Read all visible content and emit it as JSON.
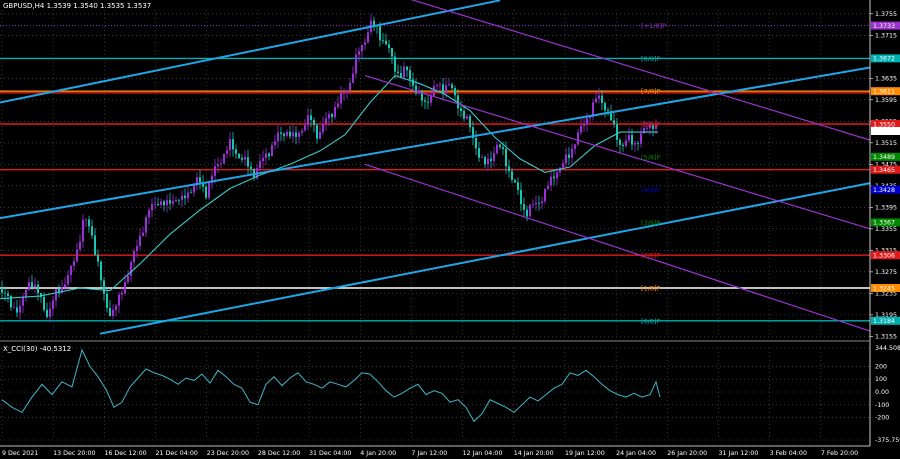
{
  "header": {
    "symbol_title": "GBPUSD,H4  1.3539 1.3540 1.3535 1.3537",
    "indicator_title": "X_CCI(30) -40.5312"
  },
  "colors": {
    "background": "#000000",
    "bull_candle": "#9b30d9",
    "bear_candle": "#19c8b4",
    "moving_average": "#3cc8c8",
    "channel_blue": "#1fa6e8",
    "channel_purple": "#9933cc",
    "support_red": "#e01a1a",
    "level_cyan": "#00b0b0",
    "level_gold": "#ff8c00",
    "grid": "#ffffff",
    "cci_line": "#3fb7c8"
  },
  "price_axis": {
    "ticks": [
      "1.3755",
      "1.3715",
      "1.3635",
      "1.3595",
      "1.3555",
      "1.3515",
      "1.3475",
      "1.3435",
      "1.3395",
      "1.3355",
      "1.3315",
      "1.3275",
      "1.3235",
      "1.3195",
      "1.3155"
    ]
  },
  "price_badges": [
    {
      "value": "1.3733",
      "price": 1.3733,
      "color": "#9933cc"
    },
    {
      "value": "1.3672",
      "price": 1.3672,
      "color": "#00b0b0"
    },
    {
      "value": "1.3611",
      "price": 1.3611,
      "color": "#ff8c00"
    },
    {
      "value": "1.3550",
      "price": 1.355,
      "color": "#e01a1a"
    },
    {
      "value": "1.3537",
      "price": 1.3537,
      "color": "#ffffff"
    },
    {
      "value": "1.3489",
      "price": 1.3489,
      "color": "#008800"
    },
    {
      "value": "1.3465",
      "price": 1.3465,
      "color": "#e01a1a"
    },
    {
      "value": "1.3428",
      "price": 1.3428,
      "color": "#0000cc"
    },
    {
      "value": "1.3367",
      "price": 1.3367,
      "color": "#008800"
    },
    {
      "value": "1.3306",
      "price": 1.3306,
      "color": "#e01a1a"
    },
    {
      "value": "1.3245",
      "price": 1.3245,
      "color": "#ff8c00"
    },
    {
      "value": "1.3184",
      "price": 1.3184,
      "color": "#00b0b0"
    }
  ],
  "murray_labels": [
    {
      "text": "[+1/8]P",
      "price": 1.3733,
      "color": "#9933cc"
    },
    {
      "text": "[8/8]P",
      "price": 1.3672,
      "color": "#00b0b0"
    },
    {
      "text": "[7/8]P",
      "price": 1.3611,
      "color": "#ff8c00"
    },
    {
      "text": "[6/8]P",
      "price": 1.355,
      "color": "#e01a1a"
    },
    {
      "text": "[5/8]P",
      "price": 1.3489,
      "color": "#008800"
    },
    {
      "text": "[4/8]P",
      "price": 1.3428,
      "color": "#0000cc"
    },
    {
      "text": "[3/8]P",
      "price": 1.3367,
      "color": "#008800"
    },
    {
      "text": "[2/8]P",
      "price": 1.3306,
      "color": "#e01a1a"
    },
    {
      "text": "[1/8]P",
      "price": 1.3245,
      "color": "#ff8c00"
    },
    {
      "text": "[0/8]P",
      "price": 1.3184,
      "color": "#00b0b0"
    }
  ],
  "time_axis": [
    "9 Dec 2021",
    "13 Dec 20:00",
    "16 Dec 12:00",
    "21 Dec 04:00",
    "23 Dec 20:00",
    "28 Dec 12:00",
    "31 Dec 04:00",
    "4 Jan 20:00",
    "7 Jan 12:00",
    "12 Jan 04:00",
    "14 Jan 20:00",
    "19 Jan 12:00",
    "24 Jan 04:00",
    "26 Jan 20:00",
    "31 Jan 12:00",
    "3 Feb 04:00",
    "7 Feb 20:00"
  ],
  "cci_axis": {
    "ticks": [
      "344.508",
      "200",
      "100",
      "0.00",
      "-100",
      "-200",
      "-375.759"
    ]
  },
  "chart_data": {
    "type": "candlestick",
    "symbol": "GBPUSD",
    "timeframe": "H4",
    "ohlc_last": {
      "open": 1.3539,
      "high": 1.354,
      "low": 1.3535,
      "close": 1.3537
    },
    "ylim": [
      1.3152,
      1.3762
    ],
    "close_path": [
      [
        0,
        1.3245
      ],
      [
        10,
        1.3215
      ],
      [
        20,
        1.3205
      ],
      [
        30,
        1.3265
      ],
      [
        40,
        1.3225
      ],
      [
        48,
        1.3195
      ],
      [
        55,
        1.323
      ],
      [
        62,
        1.325
      ],
      [
        70,
        1.327
      ],
      [
        78,
        1.3325
      ],
      [
        84,
        1.3375
      ],
      [
        92,
        1.3345
      ],
      [
        98,
        1.329
      ],
      [
        104,
        1.3225
      ],
      [
        110,
        1.32
      ],
      [
        118,
        1.3215
      ],
      [
        126,
        1.3265
      ],
      [
        134,
        1.3305
      ],
      [
        142,
        1.3355
      ],
      [
        150,
        1.339
      ],
      [
        158,
        1.341
      ],
      [
        166,
        1.3395
      ],
      [
        174,
        1.3415
      ],
      [
        182,
        1.3405
      ],
      [
        190,
        1.343
      ],
      [
        198,
        1.3445
      ],
      [
        206,
        1.3425
      ],
      [
        214,
        1.346
      ],
      [
        222,
        1.349
      ],
      [
        230,
        1.351
      ],
      [
        238,
        1.3495
      ],
      [
        246,
        1.3475
      ],
      [
        254,
        1.346
      ],
      [
        262,
        1.348
      ],
      [
        270,
        1.3505
      ],
      [
        278,
        1.3525
      ],
      [
        286,
        1.354
      ],
      [
        294,
        1.352
      ],
      [
        302,
        1.3545
      ],
      [
        310,
        1.356
      ],
      [
        318,
        1.353
      ],
      [
        326,
        1.3555
      ],
      [
        334,
        1.358
      ],
      [
        342,
        1.36
      ],
      [
        350,
        1.363
      ],
      [
        358,
        1.368
      ],
      [
        364,
        1.3705
      ],
      [
        370,
        1.3735
      ],
      [
        376,
        1.373
      ],
      [
        382,
        1.371
      ],
      [
        388,
        1.369
      ],
      [
        394,
        1.366
      ],
      [
        400,
        1.364
      ],
      [
        406,
        1.365
      ],
      [
        412,
        1.363
      ],
      [
        418,
        1.3605
      ],
      [
        424,
        1.3585
      ],
      [
        430,
        1.3605
      ],
      [
        436,
        1.362
      ],
      [
        442,
        1.3615
      ],
      [
        448,
        1.363
      ],
      [
        454,
        1.36
      ],
      [
        460,
        1.358
      ],
      [
        466,
        1.356
      ],
      [
        472,
        1.353
      ],
      [
        478,
        1.35
      ],
      [
        484,
        1.347
      ],
      [
        490,
        1.3485
      ],
      [
        496,
        1.351
      ],
      [
        502,
        1.35
      ],
      [
        508,
        1.347
      ],
      [
        514,
        1.344
      ],
      [
        520,
        1.341
      ],
      [
        526,
        1.3385
      ],
      [
        532,
        1.3395
      ],
      [
        538,
        1.3405
      ],
      [
        544,
        1.342
      ],
      [
        550,
        1.344
      ],
      [
        556,
        1.3465
      ],
      [
        562,
        1.347
      ],
      [
        568,
        1.349
      ],
      [
        574,
        1.3515
      ],
      [
        580,
        1.3535
      ],
      [
        586,
        1.356
      ],
      [
        592,
        1.358
      ],
      [
        598,
        1.36
      ],
      [
        604,
        1.359
      ],
      [
        610,
        1.356
      ],
      [
        616,
        1.353
      ],
      [
        622,
        1.351
      ],
      [
        628,
        1.352
      ],
      [
        634,
        1.3515
      ],
      [
        640,
        1.3525
      ],
      [
        646,
        1.354
      ],
      [
        652,
        1.3555
      ],
      [
        658,
        1.3537
      ]
    ],
    "moving_average_path": [
      [
        0,
        1.3225
      ],
      [
        40,
        1.323
      ],
      [
        80,
        1.3245
      ],
      [
        110,
        1.324
      ],
      [
        140,
        1.329
      ],
      [
        170,
        1.3345
      ],
      [
        200,
        1.339
      ],
      [
        230,
        1.343
      ],
      [
        260,
        1.3455
      ],
      [
        290,
        1.3475
      ],
      [
        320,
        1.35
      ],
      [
        345,
        1.353
      ],
      [
        370,
        1.359
      ],
      [
        395,
        1.364
      ],
      [
        420,
        1.3625
      ],
      [
        445,
        1.3605
      ],
      [
        470,
        1.3575
      ],
      [
        495,
        1.3525
      ],
      [
        520,
        1.3485
      ],
      [
        545,
        1.346
      ],
      [
        570,
        1.347
      ],
      [
        595,
        1.351
      ],
      [
        620,
        1.3535
      ],
      [
        658,
        1.3535
      ]
    ],
    "trend_lines": [
      {
        "color": "#1fa6e8",
        "from": [
          0,
          1.359
        ],
        "to": [
          500,
          1.378
        ]
      },
      {
        "color": "#1fa6e8",
        "from": [
          0,
          1.3375
        ],
        "to": [
          870,
          1.3655
        ]
      },
      {
        "color": "#1fa6e8",
        "from": [
          100,
          1.316
        ],
        "to": [
          870,
          1.344
        ]
      },
      {
        "color": "#9933cc",
        "from": [
          405,
          1.3785
        ],
        "to": [
          870,
          1.352
        ]
      },
      {
        "color": "#9933cc",
        "from": [
          365,
          1.364
        ],
        "to": [
          870,
          1.3355
        ]
      },
      {
        "color": "#9933cc",
        "from": [
          365,
          1.3475
        ],
        "to": [
          870,
          1.3165
        ]
      }
    ],
    "horizontal_levels": [
      {
        "price": 1.3733,
        "color": "#9933cc",
        "style": "dotted"
      },
      {
        "price": 1.3672,
        "color": "#00b0b0",
        "style": "solid"
      },
      {
        "price": 1.3611,
        "color": "#ff8c00",
        "style": "solid"
      },
      {
        "price": 1.3608,
        "color": "#e01a1a",
        "style": "solid"
      },
      {
        "price": 1.355,
        "color": "#e01a1a",
        "style": "solid"
      },
      {
        "price": 1.3465,
        "color": "#e01a1a",
        "style": "solid"
      },
      {
        "price": 1.3306,
        "color": "#e01a1a",
        "style": "solid"
      },
      {
        "price": 1.3245,
        "color": "#ffffff",
        "style": "solid"
      },
      {
        "price": 1.3184,
        "color": "#00b0b0",
        "style": "solid"
      }
    ],
    "cci_ylim": [
      -375.759,
      344.508
    ],
    "cci_values": [
      [
        0,
        -60
      ],
      [
        10,
        -120
      ],
      [
        20,
        -160
      ],
      [
        30,
        -40
      ],
      [
        40,
        60
      ],
      [
        50,
        -20
      ],
      [
        60,
        80
      ],
      [
        70,
        40
      ],
      [
        80,
        330
      ],
      [
        88,
        200
      ],
      [
        96,
        120
      ],
      [
        104,
        20
      ],
      [
        112,
        -120
      ],
      [
        120,
        -80
      ],
      [
        128,
        40
      ],
      [
        136,
        110
      ],
      [
        144,
        180
      ],
      [
        152,
        150
      ],
      [
        160,
        130
      ],
      [
        168,
        100
      ],
      [
        176,
        60
      ],
      [
        184,
        110
      ],
      [
        192,
        90
      ],
      [
        200,
        140
      ],
      [
        208,
        70
      ],
      [
        216,
        170
      ],
      [
        224,
        120
      ],
      [
        232,
        60
      ],
      [
        240,
        30
      ],
      [
        248,
        -80
      ],
      [
        256,
        -100
      ],
      [
        264,
        60
      ],
      [
        272,
        120
      ],
      [
        280,
        50
      ],
      [
        288,
        110
      ],
      [
        296,
        150
      ],
      [
        304,
        80
      ],
      [
        312,
        60
      ],
      [
        320,
        30
      ],
      [
        328,
        80
      ],
      [
        336,
        60
      ],
      [
        344,
        40
      ],
      [
        352,
        90
      ],
      [
        360,
        150
      ],
      [
        368,
        140
      ],
      [
        376,
        80
      ],
      [
        384,
        10
      ],
      [
        392,
        -40
      ],
      [
        400,
        -10
      ],
      [
        408,
        30
      ],
      [
        416,
        60
      ],
      [
        424,
        -20
      ],
      [
        432,
        10
      ],
      [
        440,
        -10
      ],
      [
        448,
        -80
      ],
      [
        456,
        -60
      ],
      [
        464,
        -120
      ],
      [
        472,
        -230
      ],
      [
        480,
        -170
      ],
      [
        488,
        -60
      ],
      [
        496,
        -90
      ],
      [
        504,
        -120
      ],
      [
        512,
        -160
      ],
      [
        520,
        -100
      ],
      [
        528,
        -40
      ],
      [
        536,
        -70
      ],
      [
        544,
        -20
      ],
      [
        552,
        30
      ],
      [
        560,
        60
      ],
      [
        568,
        150
      ],
      [
        576,
        130
      ],
      [
        584,
        170
      ],
      [
        592,
        120
      ],
      [
        600,
        60
      ],
      [
        608,
        10
      ],
      [
        616,
        -20
      ],
      [
        624,
        -40
      ],
      [
        632,
        -10
      ],
      [
        640,
        -40
      ],
      [
        648,
        -20
      ],
      [
        654,
        80
      ],
      [
        658,
        -40
      ]
    ]
  }
}
